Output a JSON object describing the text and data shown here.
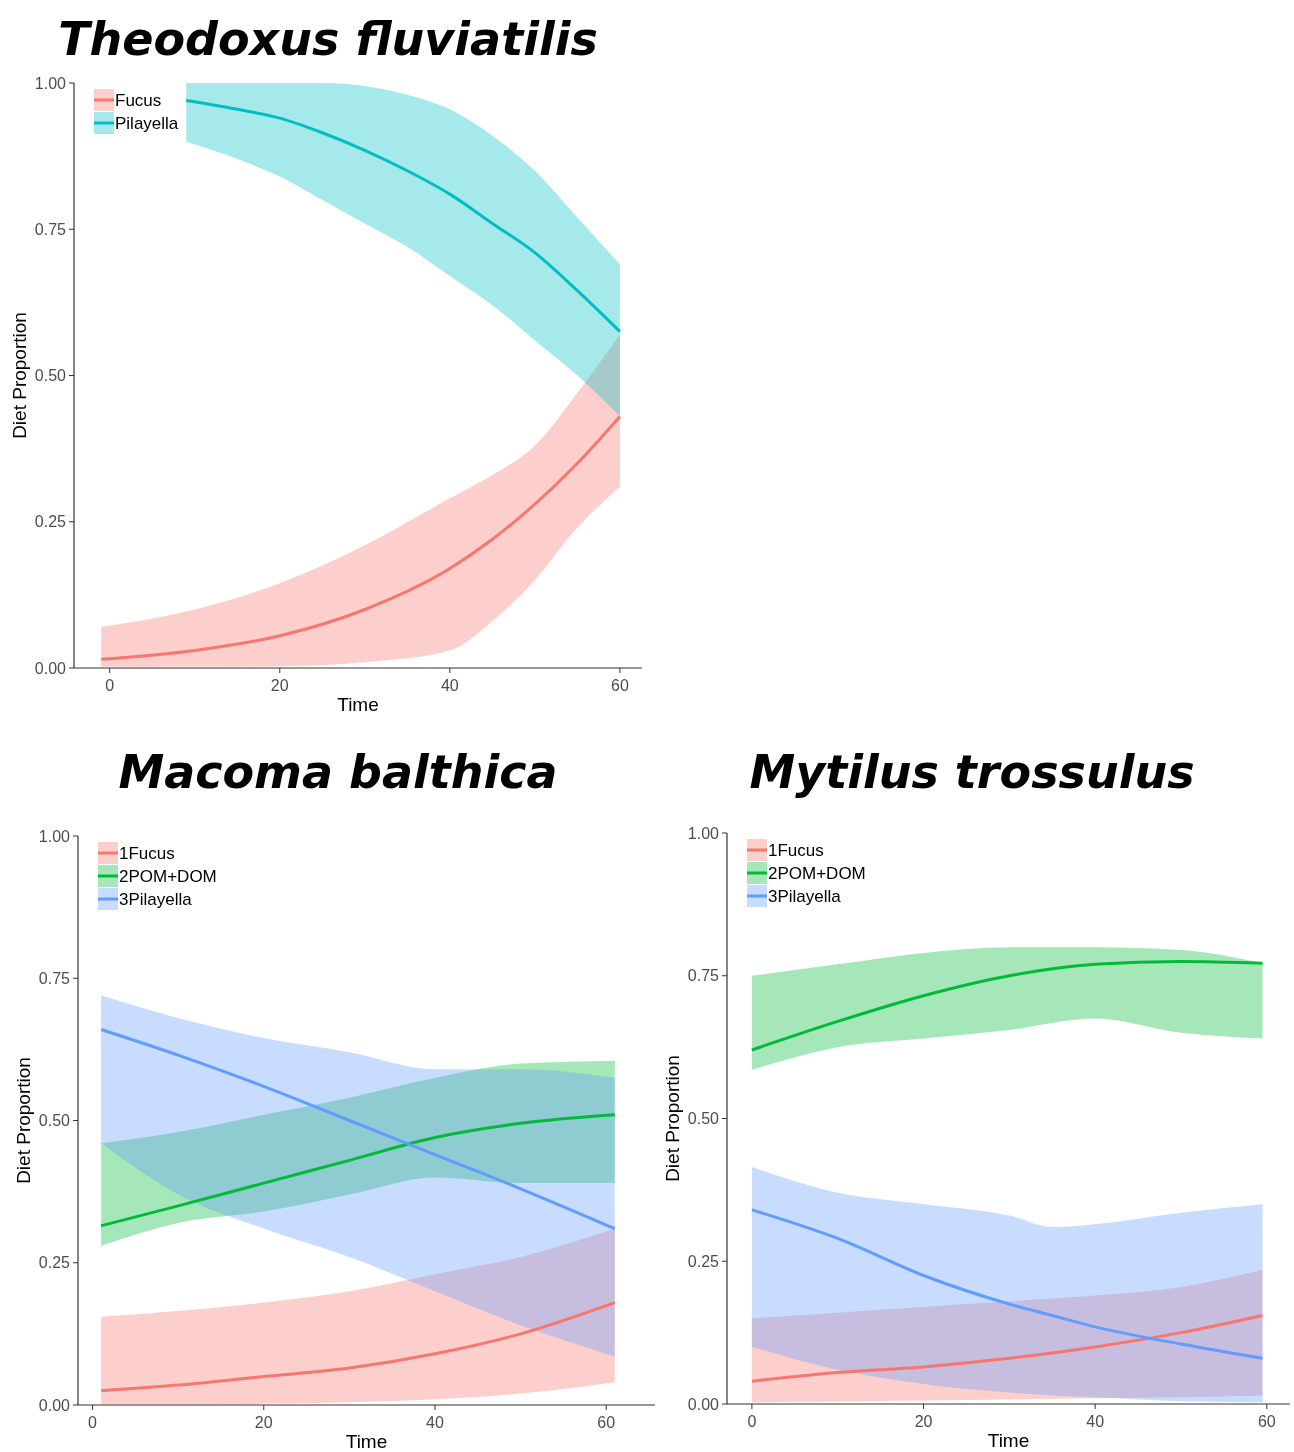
{
  "chart_data": [
    {
      "type": "line",
      "title": "Theodoxus fluviatilis",
      "xlabel": "Time",
      "ylabel": "Diet Proportion",
      "xlim": [
        -4.2,
        62.6
      ],
      "ylim": [
        0,
        1
      ],
      "xticks": [
        0,
        20,
        40,
        60
      ],
      "yticks": [
        {
          "value": 0,
          "label": "0.00"
        },
        {
          "value": 0.25,
          "label": "0.25"
        },
        {
          "value": 0.5,
          "label": "0.50"
        },
        {
          "value": 0.75,
          "label": "0.75"
        },
        {
          "value": 1,
          "label": "1.00"
        }
      ],
      "grid": false,
      "legend": "top left",
      "series": [
        {
          "name": "Fucus",
          "color": "#f8766d",
          "x": [
            -1,
            10,
            20,
            30,
            40,
            45,
            50,
            55,
            60
          ],
          "values": [
            0.015,
            0.03,
            0.055,
            0.1,
            0.17,
            0.22,
            0.28,
            0.35,
            0.43
          ],
          "lower": [
            0.002,
            0.002,
            0.003,
            0.01,
            0.03,
            0.08,
            0.15,
            0.24,
            0.31
          ],
          "upper": [
            0.07,
            0.1,
            0.145,
            0.21,
            0.29,
            0.33,
            0.38,
            0.47,
            0.57
          ]
        },
        {
          "name": "Pilayella",
          "color": "#00bfc4",
          "x": [
            9,
            15,
            20,
            25,
            30,
            35,
            40,
            45,
            50,
            55,
            60
          ],
          "values": [
            0.97,
            0.955,
            0.94,
            0.915,
            0.885,
            0.85,
            0.81,
            0.76,
            0.71,
            0.645,
            0.575
          ],
          "lower": [
            0.9,
            0.87,
            0.84,
            0.8,
            0.76,
            0.72,
            0.67,
            0.62,
            0.56,
            0.5,
            0.43
          ],
          "upper": [
            1,
            1,
            1,
            1,
            0.995,
            0.98,
            0.955,
            0.91,
            0.85,
            0.77,
            0.69
          ]
        }
      ]
    },
    {
      "type": "line",
      "title": "Macoma balthica",
      "xlabel": "Time",
      "ylabel": "Diet Proportion",
      "xlim": [
        -1.7,
        65.7
      ],
      "ylim": [
        0,
        1
      ],
      "xticks": [
        0,
        20,
        40,
        60
      ],
      "yticks": [
        {
          "value": 0,
          "label": "0.00"
        },
        {
          "value": 0.25,
          "label": "0.25"
        },
        {
          "value": 0.5,
          "label": "0.50"
        },
        {
          "value": 0.75,
          "label": "0.75"
        },
        {
          "value": 1,
          "label": "1.00"
        }
      ],
      "grid": false,
      "legend": "top left",
      "series": [
        {
          "name": "1Fucus",
          "color": "#f8766d",
          "x": [
            1,
            10,
            20,
            30,
            40,
            50,
            61
          ],
          "values": [
            0.025,
            0.035,
            0.05,
            0.065,
            0.09,
            0.125,
            0.18
          ],
          "lower": [
            0.001,
            0.001,
            0.002,
            0.005,
            0.01,
            0.02,
            0.04
          ],
          "upper": [
            0.155,
            0.165,
            0.18,
            0.2,
            0.23,
            0.26,
            0.31
          ]
        },
        {
          "name": "2POM+DOM",
          "color": "#00ba38",
          "x": [
            1,
            10,
            20,
            30,
            40,
            50,
            61
          ],
          "values": [
            0.315,
            0.35,
            0.39,
            0.43,
            0.47,
            0.495,
            0.51
          ],
          "lower": [
            0.28,
            0.32,
            0.34,
            0.37,
            0.4,
            0.39,
            0.39
          ],
          "upper": [
            0.46,
            0.48,
            0.51,
            0.54,
            0.575,
            0.6,
            0.605
          ]
        },
        {
          "name": "3Pilayella",
          "color": "#619cff",
          "x": [
            1,
            10,
            20,
            30,
            40,
            50,
            61
          ],
          "values": [
            0.66,
            0.615,
            0.56,
            0.5,
            0.44,
            0.38,
            0.31
          ],
          "lower": [
            0.46,
            0.37,
            0.31,
            0.26,
            0.2,
            0.14,
            0.085
          ],
          "upper": [
            0.72,
            0.68,
            0.645,
            0.62,
            0.59,
            0.59,
            0.575
          ]
        }
      ]
    },
    {
      "type": "line",
      "title": "Mytilus trossulus",
      "xlabel": "Time",
      "ylabel": "Diet Proportion",
      "xlim": [
        -2.9,
        62.7
      ],
      "ylim": [
        0,
        1
      ],
      "xticks": [
        0,
        20,
        40,
        60
      ],
      "yticks": [
        {
          "value": 0,
          "label": "0.00"
        },
        {
          "value": 0.25,
          "label": "0.25"
        },
        {
          "value": 0.5,
          "label": "0.50"
        },
        {
          "value": 0.75,
          "label": "0.75"
        },
        {
          "value": 1,
          "label": "1.00"
        }
      ],
      "grid": false,
      "legend": "top left",
      "series": [
        {
          "name": "1Fucus",
          "color": "#f8766d",
          "x": [
            0,
            10,
            20,
            30,
            40,
            50,
            59.5
          ],
          "values": [
            0.04,
            0.055,
            0.065,
            0.08,
            0.1,
            0.125,
            0.155
          ],
          "lower": [
            0.003,
            0.004,
            0.006,
            0.008,
            0.01,
            0.012,
            0.015
          ],
          "upper": [
            0.15,
            0.16,
            0.17,
            0.18,
            0.19,
            0.205,
            0.235
          ]
        },
        {
          "name": "2POM+DOM",
          "color": "#00ba38",
          "x": [
            0,
            10,
            20,
            30,
            40,
            50,
            59.5
          ],
          "values": [
            0.62,
            0.67,
            0.715,
            0.75,
            0.77,
            0.775,
            0.772
          ],
          "lower": [
            0.585,
            0.625,
            0.64,
            0.655,
            0.675,
            0.65,
            0.64
          ],
          "upper": [
            0.75,
            0.77,
            0.79,
            0.8,
            0.8,
            0.795,
            0.772
          ]
        },
        {
          "name": "3Pilayella",
          "color": "#619cff",
          "x": [
            0,
            10,
            20,
            30,
            35,
            40,
            50,
            59.5
          ],
          "values": [
            0.34,
            0.29,
            0.225,
            0.175,
            0.155,
            0.135,
            0.105,
            0.08
          ],
          "lower": [
            0.1,
            0.06,
            0.035,
            0.02,
            0.015,
            0.012,
            0.005,
            0.003
          ],
          "upper": [
            0.415,
            0.37,
            0.35,
            0.33,
            0.31,
            0.315,
            0.335,
            0.35
          ]
        }
      ]
    }
  ]
}
